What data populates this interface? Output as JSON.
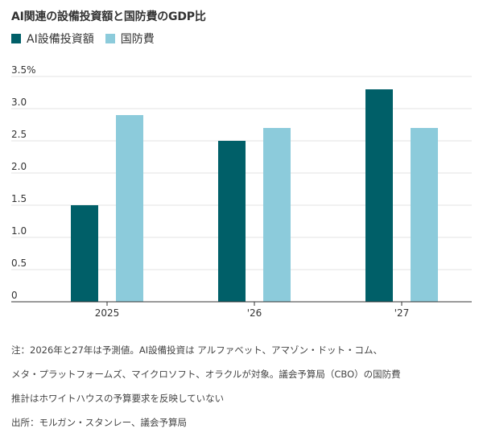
{
  "chart_data": {
    "type": "bar",
    "title": "AI関連の設備投資額と国防費のGDP比",
    "xlabel": "",
    "ylabel": "",
    "categories": [
      "2025",
      "'26",
      "'27"
    ],
    "series": [
      {
        "name": "AI設備投資額",
        "values": [
          1.5,
          2.5,
          3.3
        ],
        "color": "#005f68"
      },
      {
        "name": "国防費",
        "values": [
          2.9,
          2.7,
          2.7
        ],
        "color": "#8ccbdb"
      }
    ],
    "ylim": [
      0,
      3.5
    ],
    "y_ticks": [
      "0",
      "0.5",
      "1.0",
      "1.5",
      "2.0",
      "2.5",
      "3.0",
      "3.5%"
    ],
    "grid": true,
    "legend_position": "top-left"
  },
  "footnote": {
    "note_lines": [
      "注：2026年と27年は予測値。AI設備投資は アルファベット、アマゾン・ドット・コム、",
      "メタ・プラットフォームズ、マイクロソフト、オラクルが対象。議会予算局（CBO）の国防費",
      "推計はホワイトハウスの予算要求を反映していない"
    ],
    "source": "出所：モルガン・スタンレー、議会予算局"
  }
}
